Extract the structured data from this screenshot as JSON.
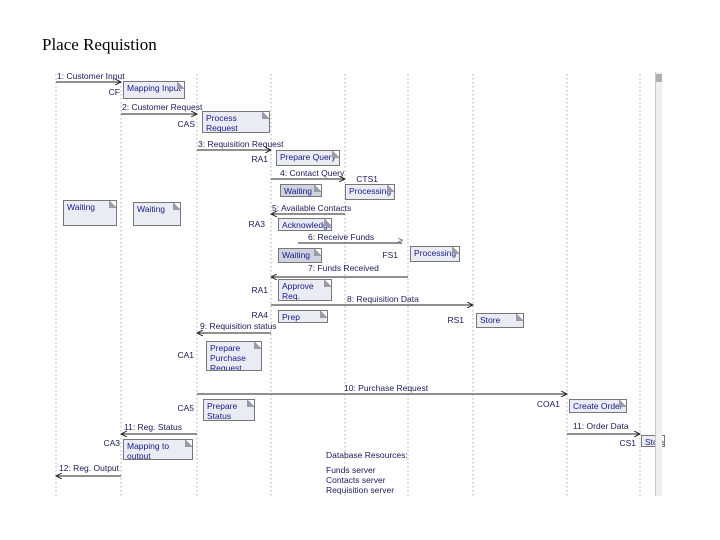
{
  "title": "Place Requistion",
  "messages": [
    "1: Customer Input",
    "2: Customer Request",
    "3: Requisition Request",
    "4: Contact Query",
    "5: Available Contacts",
    "6: Receive Funds",
    "7: Funds Received",
    "8: Requisition Data",
    "9: Requisition status",
    "10: Purchase Request",
    "11: Reg. Status",
    "11: Order Data",
    "12: Reg. Output"
  ],
  "lifelines": [
    "CF",
    "CAS",
    "RA1",
    "CTS1",
    "RA3",
    "FS1",
    "RA1",
    "RA4",
    "RS1",
    "CA1",
    "CA5",
    "COA1",
    "CS1",
    "CA3"
  ],
  "boxes": [
    "Mapping Input",
    "Process Request",
    "Prepare Query",
    "Waiting",
    "Processing",
    "Waiting",
    "Waiting",
    "Acknowledge",
    "Waiting",
    "Processing",
    "Approve Req. Process Data",
    "Prep Status",
    "Store Data",
    "Prepare Purchase Request",
    "Prepare Status",
    "Create Order",
    "Mapping to output",
    "Store"
  ],
  "db_note": {
    "heading": "Database Resources:",
    "lines": [
      "Funds server",
      "Contacts server",
      "Requisition server"
    ]
  }
}
